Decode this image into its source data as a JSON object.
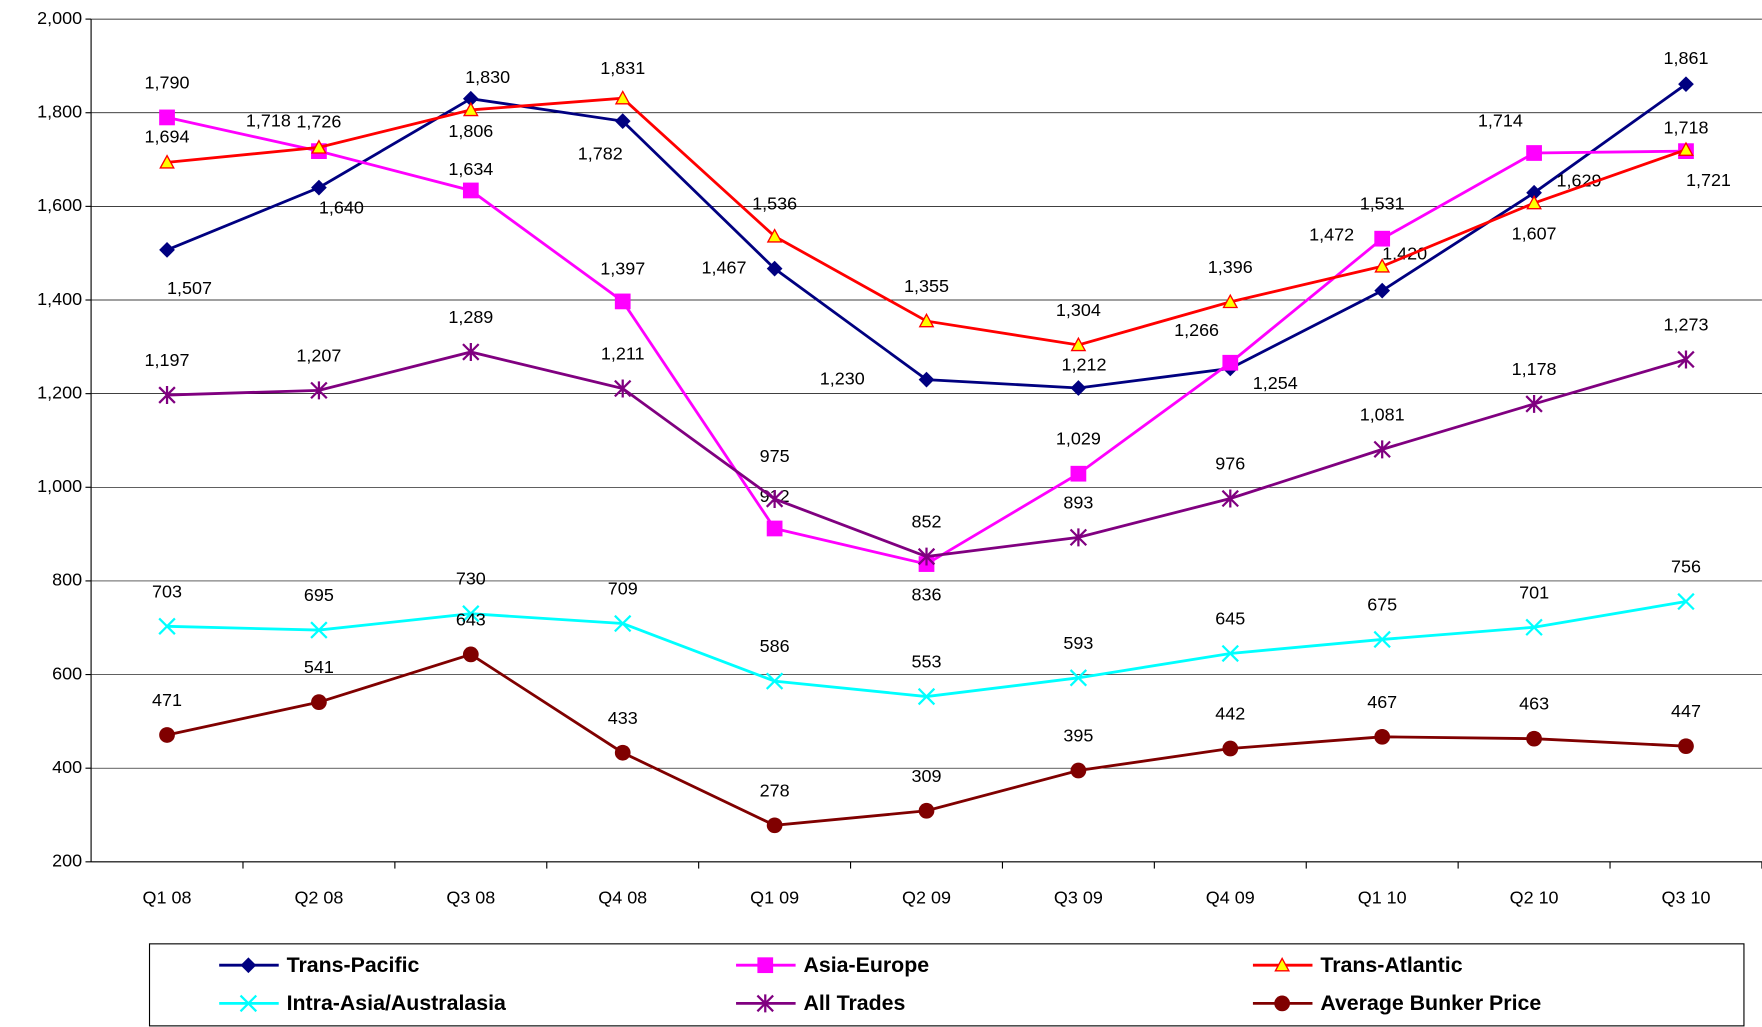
{
  "chart_data": {
    "type": "line",
    "categories": [
      "Q1 08",
      "Q2 08",
      "Q3 08",
      "Q4 08",
      "Q1 09",
      "Q2 09",
      "Q3 09",
      "Q4 09",
      "Q1 10",
      "Q2 10",
      "Q3 10"
    ],
    "ylim": [
      200,
      2000
    ],
    "yticks": [
      200,
      400,
      600,
      800,
      {
        "value": 1000,
        "label": "1,000"
      },
      {
        "value": 1200,
        "label": "1,200"
      },
      {
        "value": 1400,
        "label": "1,400"
      },
      {
        "value": 1600,
        "label": "1,600"
      },
      {
        "value": 1800,
        "label": "1,800"
      },
      {
        "value": 2000,
        "label": "2,000"
      }
    ],
    "grid": true,
    "legend": "bottom",
    "series": [
      {
        "name": "Trans-Pacific",
        "color": "#000080",
        "marker": "diamond",
        "values": [
          1507,
          1640,
          1830,
          1782,
          1467,
          1230,
          1212,
          1254,
          1420,
          1629,
          1861
        ],
        "value_labels": [
          "1,507",
          "1,640",
          "1,830",
          "1,782",
          "1,467",
          "1,230",
          "1,212",
          "1,254",
          "1,420",
          "1,629",
          "1,861"
        ]
      },
      {
        "name": "Asia-Europe",
        "color": "#ff00ff",
        "marker": "square",
        "values": [
          1790,
          1718,
          1634,
          1397,
          912,
          836,
          1029,
          1266,
          1531,
          1714,
          1718
        ],
        "value_labels": [
          "1,790",
          "1,718",
          "1,634",
          "1,397",
          "912",
          "836",
          "1,029",
          "1,266",
          "1,531",
          "1,714",
          "1,718"
        ]
      },
      {
        "name": "Trans-Atlantic",
        "color": "#ff0000",
        "marker": "triangle",
        "values": [
          1694,
          1726,
          1806,
          1831,
          1536,
          1355,
          1304,
          1396,
          1472,
          1607,
          1721
        ],
        "value_labels": [
          "1,694",
          "1,726",
          "1,806",
          "1,831",
          "1,536",
          "1,355",
          "1,304",
          "1,396",
          "1,472",
          "1,607",
          "1,721"
        ]
      },
      {
        "name": "Intra-Asia/Australasia",
        "color": "#00ffff",
        "marker": "x",
        "values": [
          703,
          695,
          730,
          709,
          586,
          553,
          593,
          645,
          675,
          701,
          756
        ]
      },
      {
        "name": "All Trades",
        "color": "#800080",
        "marker": "star",
        "values": [
          1197,
          1207,
          1289,
          1211,
          975,
          852,
          893,
          976,
          1081,
          1178,
          1273
        ],
        "value_labels": [
          "1,197",
          "1,207",
          "1,289",
          "1,211",
          "975",
          "852",
          "893",
          "976",
          "1,081",
          "1,178",
          "1,273"
        ]
      },
      {
        "name": "Average Bunker Price",
        "color": "#800000",
        "marker": "circle",
        "values": [
          471,
          541,
          643,
          433,
          278,
          309,
          395,
          442,
          467,
          463,
          447
        ]
      }
    ]
  }
}
